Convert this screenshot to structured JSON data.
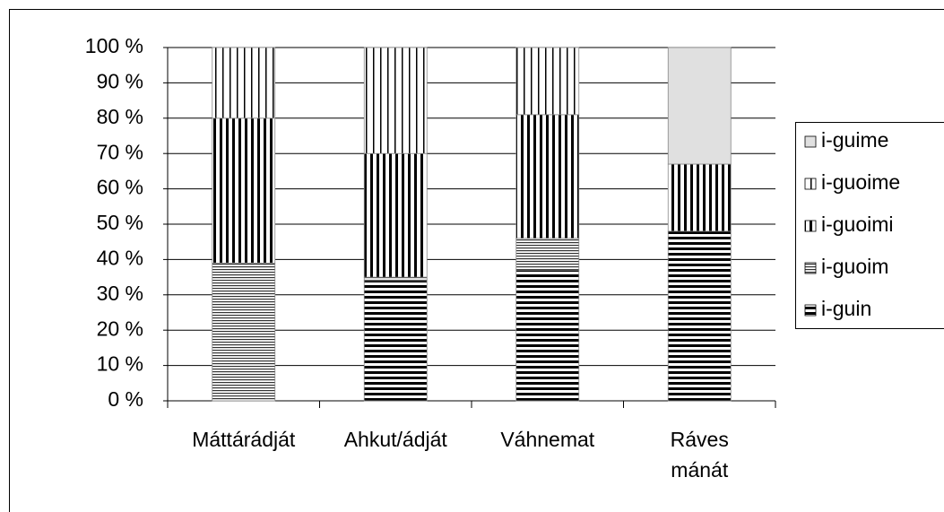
{
  "chart_data": {
    "type": "stacked_bar_100",
    "categories": [
      "Máttárádját",
      "Ahkut/ádját",
      "Váhnemat",
      "Ráves mánát"
    ],
    "series": [
      {
        "name": "i-guin",
        "color": "#000000",
        "pattern": "horizontal-thick",
        "values": [
          0,
          34,
          37,
          48
        ]
      },
      {
        "name": "i-guoim",
        "color": "#000000",
        "pattern": "horizontal-fine",
        "values": [
          39,
          1,
          9,
          0
        ]
      },
      {
        "name": "i-guoimi",
        "color": "#000000",
        "pattern": "vertical-thick",
        "values": [
          41,
          35,
          35,
          19
        ]
      },
      {
        "name": "i-guoime",
        "color": "#000000",
        "pattern": "vertical-thin",
        "values": [
          20,
          30,
          19,
          0
        ]
      },
      {
        "name": "i-guime",
        "color": "#e0e0e0",
        "pattern": "solid",
        "values": [
          0,
          0,
          0,
          33
        ]
      }
    ],
    "ylim": [
      0,
      100
    ],
    "yticks": [
      {
        "value": 0,
        "label": "0 %"
      },
      {
        "value": 10,
        "label": "10 %"
      },
      {
        "value": 20,
        "label": "20 %"
      },
      {
        "value": 30,
        "label": "30 %"
      },
      {
        "value": 40,
        "label": "40 %"
      },
      {
        "value": 50,
        "label": "50 %"
      },
      {
        "value": 60,
        "label": "60 %"
      },
      {
        "value": 70,
        "label": "70 %"
      },
      {
        "value": 80,
        "label": "80 %"
      },
      {
        "value": 90,
        "label": "90 %"
      },
      {
        "value": 100,
        "label": "100 %"
      }
    ],
    "grid": true,
    "legend": "right"
  }
}
